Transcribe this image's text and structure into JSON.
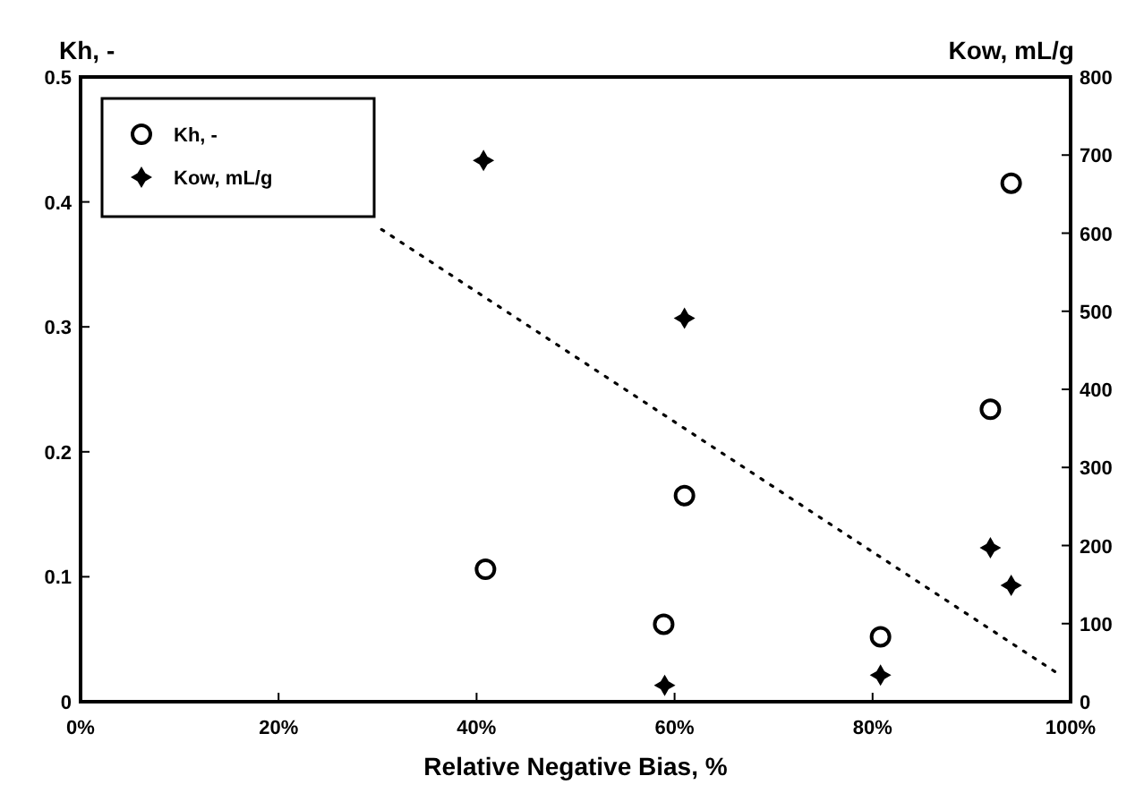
{
  "chart_data": {
    "type": "scatter",
    "xlabel": "Relative Negative Bias, %",
    "ylabel": "Kh, -",
    "y2label": "Kow, mL/g",
    "xlim": [
      0,
      100
    ],
    "xticks": [
      {
        "value": 0,
        "label": "0%"
      },
      {
        "value": 20,
        "label": "20%"
      },
      {
        "value": 40,
        "label": "40%"
      },
      {
        "value": 60,
        "label": "60%"
      },
      {
        "value": 80,
        "label": "80%"
      },
      {
        "value": 100,
        "label": "100%"
      }
    ],
    "ylim": [
      0,
      0.5
    ],
    "yticks": [
      0,
      0.1,
      0.2,
      0.3,
      0.4,
      0.5
    ],
    "y2lim": [
      0,
      800
    ],
    "y2ticks": [
      0,
      100,
      200,
      300,
      400,
      500,
      600,
      700,
      800
    ],
    "legend": "top left",
    "grid": false,
    "series": [
      {
        "name": "Kh, -",
        "color": "#000000",
        "marker": "circle",
        "x": [
          40.9,
          58.9,
          61,
          80.8,
          91.9,
          94
        ],
        "values": [
          0.106,
          0.062,
          0.165,
          0.052,
          0.234,
          0.415
        ]
      },
      {
        "name": "Kow, mL/g",
        "color": "#000000",
        "marker": "cross",
        "axis": "y2",
        "x": [
          40.7,
          61,
          59,
          80.8,
          91.9,
          94
        ],
        "values": [
          693,
          491,
          21,
          34,
          197,
          149
        ]
      },
      {
        "type": "line",
        "color": "#000000",
        "line_style": "dotted",
        "x": [
          30.4,
          99
        ],
        "values": [
          0.378,
          0.021
        ]
      }
    ]
  }
}
